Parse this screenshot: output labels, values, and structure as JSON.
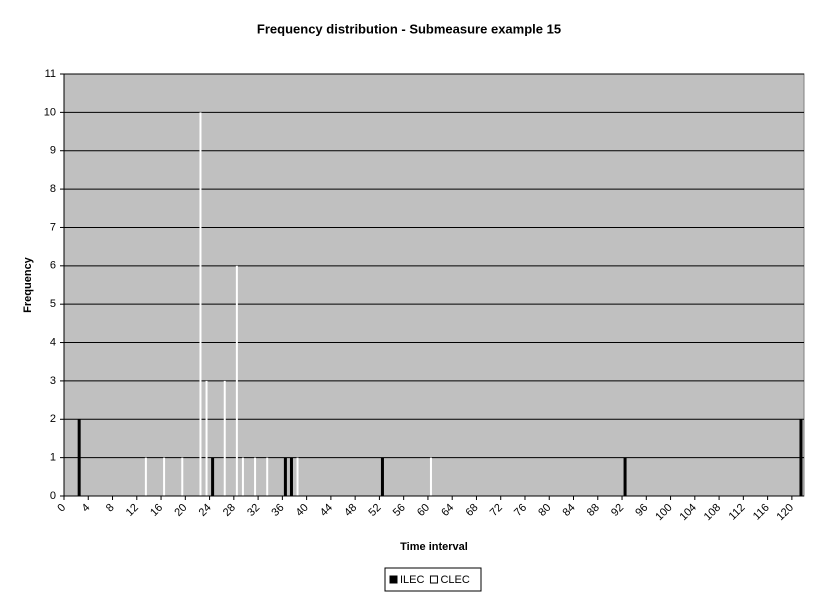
{
  "chart_data": {
    "type": "bar",
    "title": "Frequency distribution - Submeasure example 15",
    "x_label": "Time interval",
    "y_label": "Frequency",
    "xlim": [
      0,
      122
    ],
    "xticks": [
      0,
      4,
      8,
      12,
      16,
      20,
      24,
      28,
      32,
      36,
      40,
      44,
      48,
      52,
      56,
      60,
      64,
      68,
      72,
      76,
      80,
      84,
      88,
      92,
      96,
      100,
      104,
      108,
      112,
      116,
      120
    ],
    "ylim": [
      0,
      11
    ],
    "yticks": [
      0,
      1,
      2,
      3,
      4,
      5,
      6,
      7,
      8,
      9,
      10,
      11
    ],
    "grid": true,
    "legend": "bottom",
    "series": [
      {
        "name": "ILEC",
        "color": "#000000",
        "x": [
          2,
          24,
          36,
          37,
          52,
          92,
          121
        ],
        "values": [
          2,
          1,
          1,
          1,
          1,
          1,
          2
        ]
      },
      {
        "name": "CLEC",
        "color": "#ffffff",
        "x": [
          13,
          16,
          19,
          22,
          23,
          26,
          28,
          29,
          31,
          33,
          38,
          60
        ],
        "values": [
          1,
          1,
          1,
          10,
          3,
          3,
          6,
          1,
          1,
          1,
          1,
          1
        ]
      }
    ]
  }
}
